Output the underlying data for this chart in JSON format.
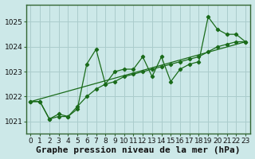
{
  "title": "Graphe pression niveau de la mer (hPa)",
  "background_color": "#cce8e8",
  "plot_bg_color": "#cce8e8",
  "grid_color": "#aacccc",
  "line_color": "#1a6b1a",
  "border_color": "#336633",
  "xlim": [
    -0.5,
    23.5
  ],
  "ylim": [
    1020.5,
    1025.7
  ],
  "yticks": [
    1021,
    1022,
    1023,
    1024,
    1025
  ],
  "xticks": [
    0,
    1,
    2,
    3,
    4,
    5,
    6,
    7,
    8,
    9,
    10,
    11,
    12,
    13,
    14,
    15,
    16,
    17,
    18,
    19,
    20,
    21,
    22,
    23
  ],
  "series1_x": [
    0,
    1,
    2,
    3,
    4,
    5,
    6,
    7,
    8,
    9,
    10,
    11,
    12,
    13,
    14,
    15,
    16,
    17,
    18,
    19,
    20,
    21,
    22,
    23
  ],
  "series1_y": [
    1021.8,
    1021.8,
    1021.1,
    1021.2,
    1021.2,
    1021.5,
    1023.3,
    1023.9,
    1022.5,
    1023.0,
    1023.1,
    1023.1,
    1023.6,
    1022.8,
    1023.6,
    1022.6,
    1023.1,
    1023.3,
    1023.4,
    1025.2,
    1024.7,
    1024.5,
    1024.5,
    1024.2
  ],
  "series2_x": [
    0,
    1,
    2,
    3,
    4,
    5,
    6,
    7,
    8,
    9,
    10,
    11,
    12,
    13,
    14,
    15,
    16,
    17,
    18,
    19,
    20,
    21,
    22,
    23
  ],
  "series2_y": [
    1021.8,
    1021.8,
    1021.1,
    1021.3,
    1021.2,
    1021.6,
    1022.0,
    1022.3,
    1022.5,
    1022.6,
    1022.8,
    1022.9,
    1023.0,
    1023.1,
    1023.2,
    1023.3,
    1023.4,
    1023.5,
    1023.6,
    1023.8,
    1024.0,
    1024.1,
    1024.2,
    1024.2
  ],
  "series3_x": [
    0,
    23
  ],
  "series3_y": [
    1021.8,
    1024.2
  ],
  "title_fontsize": 8,
  "tick_fontsize": 6.5
}
